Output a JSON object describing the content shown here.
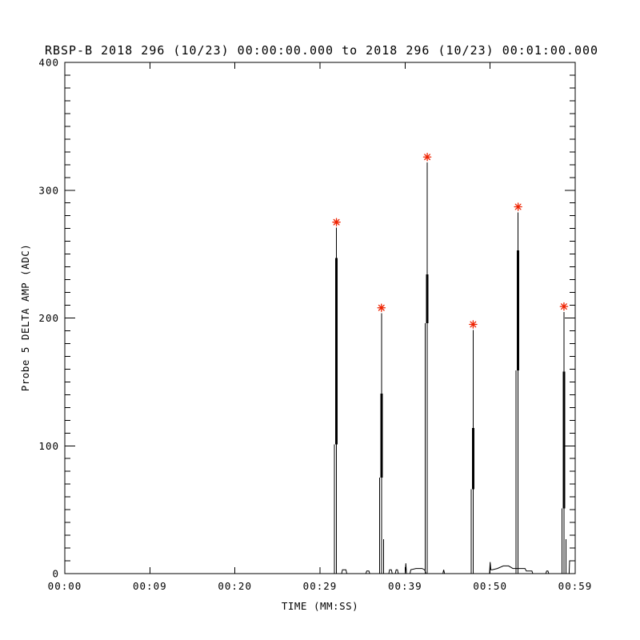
{
  "window": {
    "background": "#ffffff",
    "foreground": "#000000"
  },
  "chart_data": {
    "type": "line",
    "title": "RBSP-B 2018 296 (10/23) 00:00:00.000 to 2018 296 (10/23) 00:01:00.000",
    "xlabel": "TIME (MM:SS)",
    "ylabel": "Probe 5 DELTA AMP (ADC)",
    "line_color": "#000000",
    "marker_color": "#ee2200",
    "marker_glyph": "asterisk",
    "grid": false,
    "legend": "none",
    "xlim_seconds": [
      0,
      59
    ],
    "ylim": [
      0,
      400
    ],
    "x_tick_labels": [
      "00:00",
      "00:09",
      "00:20",
      "00:29",
      "00:39",
      "00:50",
      "00:59"
    ],
    "y_tick_labels": [
      "0",
      "100",
      "200",
      "300",
      "400"
    ],
    "y_tick_values": [
      0,
      100,
      200,
      300,
      400
    ],
    "y_minor_tick_step": 10,
    "peaks": [
      {
        "time_s": 31.4,
        "time_label": "00:31",
        "value": 275
      },
      {
        "time_s": 36.6,
        "time_label": "00:37",
        "value": 208
      },
      {
        "time_s": 41.9,
        "time_label": "00:42",
        "value": 326
      },
      {
        "time_s": 47.2,
        "time_label": "00:47",
        "value": 195
      },
      {
        "time_s": 52.4,
        "time_label": "00:52",
        "value": 287
      },
      {
        "time_s": 57.7,
        "time_label": "00:58",
        "value": 209
      }
    ],
    "spikes": [
      {
        "time_s": 31.4,
        "peak": 275,
        "thick": [
          101,
          247
        ],
        "shoulder": null
      },
      {
        "time_s": 36.6,
        "peak": 208,
        "thick": [
          75,
          141
        ],
        "shoulder": 27
      },
      {
        "time_s": 41.9,
        "peak": 326,
        "thick": [
          196,
          234
        ],
        "shoulder": null
      },
      {
        "time_s": 47.2,
        "peak": 195,
        "thick": [
          66,
          114
        ],
        "shoulder": null
      },
      {
        "time_s": 52.4,
        "peak": 287,
        "thick": [
          159,
          253
        ],
        "shoulder": null
      },
      {
        "time_s": 57.7,
        "peak": 209,
        "thick": [
          51,
          158
        ],
        "shoulder": 27
      }
    ],
    "baseline_series": [
      [
        0,
        0
      ],
      [
        30.9,
        0
      ],
      [
        32.0,
        0
      ],
      [
        32.1,
        3
      ],
      [
        32.5,
        3
      ],
      [
        32.6,
        0
      ],
      [
        34.8,
        0
      ],
      [
        34.9,
        2
      ],
      [
        35.15,
        2
      ],
      [
        35.25,
        0
      ],
      [
        37.45,
        0
      ],
      [
        37.55,
        3
      ],
      [
        37.75,
        3
      ],
      [
        37.85,
        0
      ],
      [
        38.2,
        0
      ],
      [
        38.3,
        3
      ],
      [
        38.45,
        3
      ],
      [
        38.55,
        0
      ],
      [
        39.35,
        0
      ],
      [
        39.42,
        8
      ],
      [
        39.5,
        0
      ],
      [
        39.9,
        0
      ],
      [
        40.0,
        3
      ],
      [
        40.6,
        4
      ],
      [
        41.3,
        4
      ],
      [
        41.6,
        3
      ],
      [
        41.75,
        0
      ],
      [
        43.7,
        0
      ],
      [
        43.8,
        3
      ],
      [
        43.9,
        0
      ],
      [
        49.1,
        0
      ],
      [
        49.17,
        9
      ],
      [
        49.25,
        3
      ],
      [
        49.4,
        3
      ],
      [
        50.0,
        4
      ],
      [
        50.7,
        6
      ],
      [
        51.3,
        6
      ],
      [
        51.8,
        4
      ],
      [
        53.2,
        4
      ],
      [
        53.35,
        2
      ],
      [
        54.0,
        2
      ],
      [
        54.1,
        0
      ],
      [
        55.6,
        0
      ],
      [
        55.7,
        2
      ],
      [
        55.85,
        2
      ],
      [
        55.95,
        0
      ],
      [
        58.3,
        0
      ],
      [
        58.35,
        10
      ],
      [
        59,
        10
      ]
    ]
  }
}
